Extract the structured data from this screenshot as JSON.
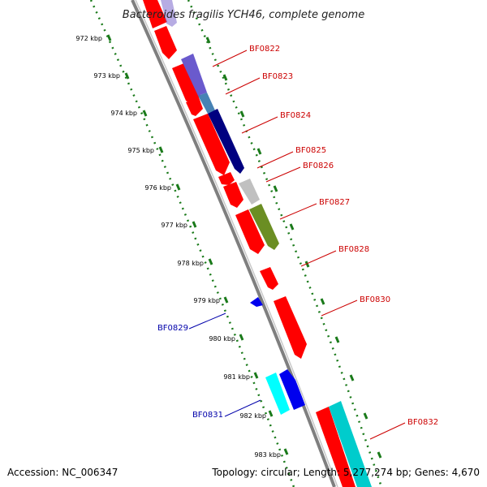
{
  "title": "Bacteroides fragilis YCH46, complete genome",
  "footer": {
    "accession": "Accession: NC_006347",
    "summary": "Topology: circular; Length: 5,277,274 bp; Genes: 4,670"
  },
  "colors": {
    "forward_label": "#cc0000",
    "reverse_label": "#0000aa",
    "backbone": "#7f7f7f",
    "tick": "#1a7a1a"
  },
  "kbp_labels": [
    "972 kbp",
    "973 kbp",
    "974 kbp",
    "975 kbp",
    "976 kbp",
    "977 kbp",
    "978 kbp",
    "979 kbp",
    "980 kbp",
    "981 kbp",
    "982 kbp",
    "983 kbp"
  ],
  "gene_labels": [
    {
      "name": "BF0822",
      "strand": "forward"
    },
    {
      "name": "BF0823",
      "strand": "forward"
    },
    {
      "name": "BF0824",
      "strand": "forward"
    },
    {
      "name": "BF0825",
      "strand": "forward"
    },
    {
      "name": "BF0826",
      "strand": "forward"
    },
    {
      "name": "BF0827",
      "strand": "forward"
    },
    {
      "name": "BF0828",
      "strand": "forward"
    },
    {
      "name": "BF0830",
      "strand": "forward"
    },
    {
      "name": "BF0829",
      "strand": "reverse"
    },
    {
      "name": "BF0831",
      "strand": "reverse"
    },
    {
      "name": "BF0832",
      "strand": "forward"
    }
  ]
}
